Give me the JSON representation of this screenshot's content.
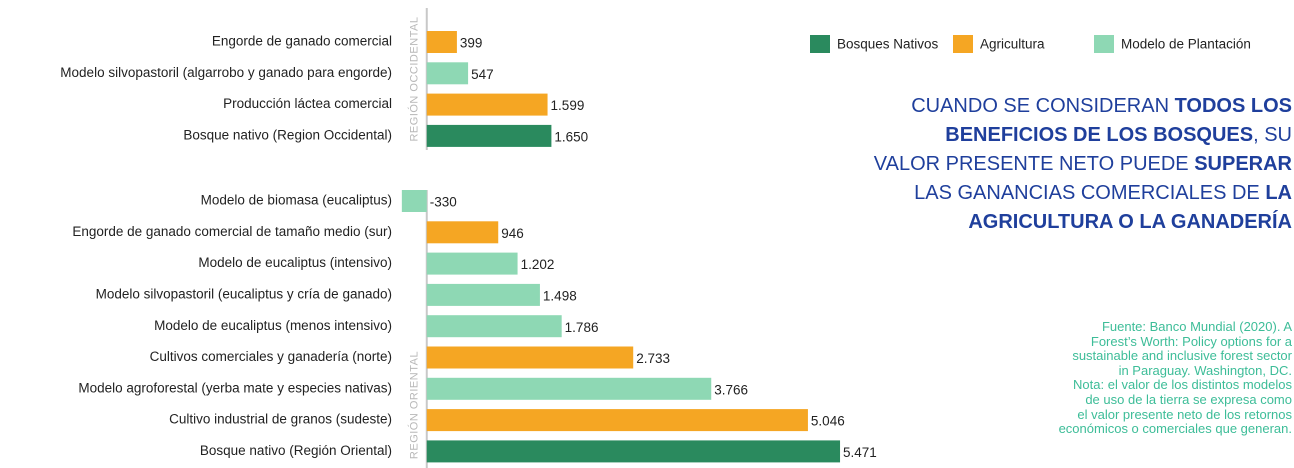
{
  "chart_data": {
    "type": "bar",
    "orientation": "horizontal",
    "xlim": [
      -500,
      6000
    ],
    "groups": [
      {
        "label": "REGIÓN OCCIDENTAL",
        "categories": [
          "Engorde de ganado comercial",
          "Modelo silvopastoril (algarrobo y ganado para engorde)",
          "Producción láctea comercial",
          "Bosque nativo (Region Occidental)"
        ]
      },
      {
        "label": "REGIÓN ORIENTAL",
        "categories": [
          "Modelo de biomasa (eucaliptus)",
          "Engorde de ganado comercial de tamaño medio (sur)",
          "Modelo de eucaliptus (intensivo)",
          "Modelo silvopastoril (eucaliptus y cría de ganado)",
          "Modelo de eucaliptus (menos intensivo)",
          "Cultivos comerciales y ganadería (norte)",
          "Modelo agroforestal (yerba mate y especies nativas)",
          "Cultivo industrial de granos (sudeste)",
          "Bosque nativo (Región Oriental)"
        ]
      }
    ],
    "series": [
      {
        "name": "Bosques Nativos",
        "color": "#2a8a5e",
        "values": [
          [
            null,
            null,
            null,
            1650
          ],
          [
            null,
            null,
            null,
            null,
            null,
            null,
            null,
            null,
            5471
          ]
        ],
        "value_labels": [
          [
            null,
            null,
            null,
            "1.650"
          ],
          [
            null,
            null,
            null,
            null,
            null,
            null,
            null,
            null,
            "5.471"
          ]
        ]
      },
      {
        "name": "Agricultura",
        "color": "#f5a623",
        "values": [
          [
            399,
            null,
            1599,
            null
          ],
          [
            null,
            946,
            null,
            null,
            null,
            2733,
            null,
            5046,
            null
          ]
        ],
        "value_labels": [
          [
            "399",
            null,
            "1.599",
            null
          ],
          [
            null,
            "946",
            null,
            null,
            null,
            "2.733",
            null,
            "5.046",
            null
          ]
        ]
      },
      {
        "name": "Modelo de Plantación",
        "color": "#8ed8b4",
        "values": [
          [
            null,
            547,
            null,
            null
          ],
          [
            -330,
            null,
            1202,
            1498,
            1786,
            null,
            3766,
            null,
            null
          ]
        ],
        "value_labels": [
          [
            null,
            "547",
            null,
            null
          ],
          [
            "-330",
            null,
            "1.202",
            "1.498",
            "1.786",
            null,
            "3.766",
            null,
            null
          ]
        ]
      }
    ]
  },
  "headline": [
    [
      {
        "text": "CUANDO SE CONSIDERAN ",
        "bold": false
      },
      {
        "text": "TODOS LOS",
        "bold": true
      }
    ],
    [
      {
        "text": "BENEFICIOS DE LOS BOSQUES",
        "bold": true
      },
      {
        "text": ", SU",
        "bold": false
      }
    ],
    [
      {
        "text": "VALOR PRESENTE NETO PUEDE ",
        "bold": false
      },
      {
        "text": "SUPERAR",
        "bold": true
      }
    ],
    [
      {
        "text": "LAS GANANCIAS COMERCIALES DE ",
        "bold": false
      },
      {
        "text": "LA",
        "bold": true
      }
    ],
    [
      {
        "text": "AGRICULTURA O LA GANADERÍA",
        "bold": true
      }
    ]
  ],
  "source": [
    "Fuente: Banco Mundial (2020). A",
    "Forest’s Worth: Policy options for a",
    "sustainable and inclusive forest sector",
    "in Paraguay. Washington, DC.",
    "Nota: el valor de los distintos modelos",
    "de uso de la tierra se expresa como",
    "el valor presente neto de los retornos",
    "económicos o comerciales que generan."
  ]
}
